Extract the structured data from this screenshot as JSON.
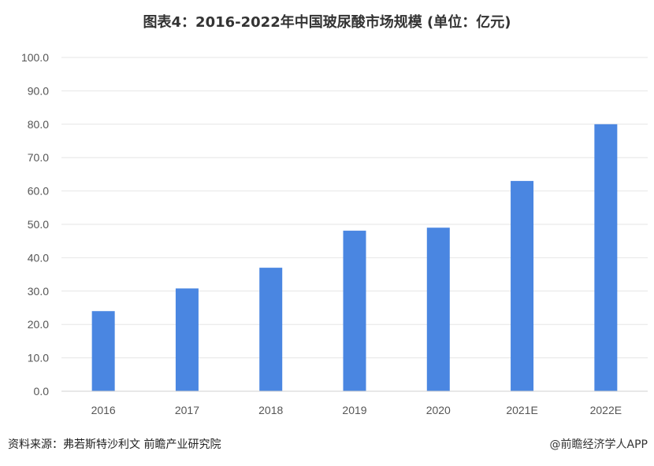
{
  "title": "图表4：2016-2022年中国玻尿酸市场规模 (单位：亿元)",
  "source": "资料来源：弗若斯特沙利文 前瞻产业研究院",
  "brand": "@前瞻经济学人APP",
  "colors": {
    "bar": "#4a86e1",
    "grid": "#e6e6e6",
    "axis": "#d0d0d0",
    "text": "#555555"
  },
  "chart_data": {
    "type": "bar",
    "title": "图表4：2016-2022年中国玻尿酸市场规模 (单位：亿元)",
    "categories": [
      "2016",
      "2017",
      "2018",
      "2019",
      "2020",
      "2021E",
      "2022E"
    ],
    "values": [
      24.0,
      30.8,
      37.0,
      48.1,
      49.0,
      63.0,
      80.0
    ],
    "yticks": [
      "0.0",
      "10.0",
      "20.0",
      "30.0",
      "40.0",
      "50.0",
      "60.0",
      "70.0",
      "80.0",
      "90.0",
      "100.0"
    ],
    "ylim": [
      0,
      100
    ],
    "grid": true,
    "legend": "none"
  }
}
